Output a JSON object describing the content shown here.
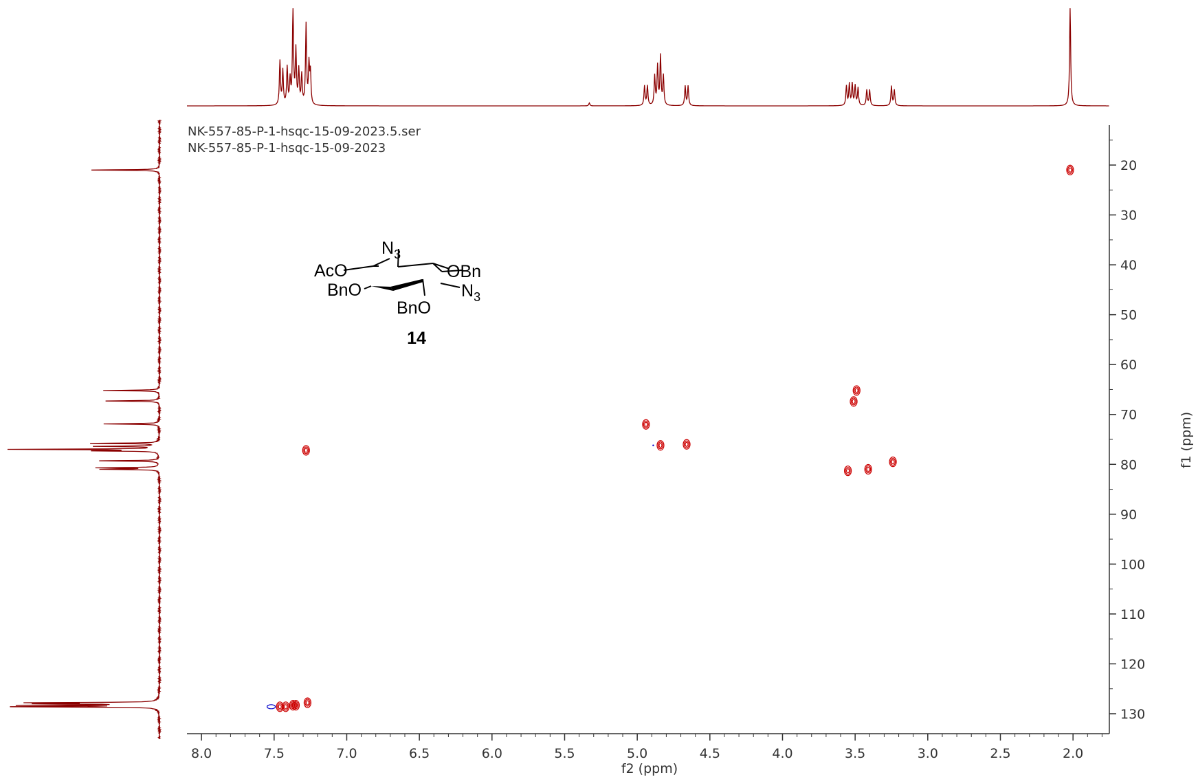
{
  "chart_data": {
    "type": "scatter",
    "subtype": "2D HSQC NMR contour plot",
    "file_lines": [
      "NK-557-85-P-1-hsqc-15-09-2023.5.ser",
      "NK-557-85-P-1-hsqc-15-09-2023"
    ],
    "xlabel": "f2 (ppm)",
    "ylabel": "f1 (ppm)",
    "xlim": [
      8.1,
      1.75
    ],
    "ylim": [
      12,
      134
    ],
    "x_ticks": [
      "8.0",
      "7.5",
      "7.0",
      "6.5",
      "6.0",
      "5.5",
      "5.0",
      "4.5",
      "4.0",
      "3.5",
      "3.0",
      "2.5",
      "2.0"
    ],
    "y_ticks": [
      "20",
      "30",
      "40",
      "50",
      "60",
      "70",
      "80",
      "90",
      "100",
      "110",
      "120",
      "130"
    ],
    "x_tick_values": [
      8.0,
      7.5,
      7.0,
      6.5,
      6.0,
      5.5,
      5.0,
      4.5,
      4.0,
      3.5,
      3.0,
      2.5,
      2.0
    ],
    "y_tick_values": [
      20,
      30,
      40,
      50,
      60,
      70,
      80,
      90,
      100,
      110,
      120,
      130
    ],
    "colors": {
      "positive": "#cc0000",
      "negative": "#0000cc",
      "projection": "#8b0000",
      "frame": "#333333"
    },
    "grid": false,
    "cross_peaks": [
      {
        "x": 2.02,
        "y": 21.0
      },
      {
        "x": 7.28,
        "y": 77.2
      },
      {
        "x": 4.94,
        "y": 72.0
      },
      {
        "x": 4.84,
        "y": 76.2
      },
      {
        "x": 4.66,
        "y": 76.0
      },
      {
        "x": 3.49,
        "y": 65.2
      },
      {
        "x": 3.51,
        "y": 67.4
      },
      {
        "x": 3.55,
        "y": 81.3
      },
      {
        "x": 3.41,
        "y": 81.0
      },
      {
        "x": 3.24,
        "y": 79.5
      },
      {
        "x": 7.46,
        "y": 128.6
      },
      {
        "x": 7.42,
        "y": 128.6
      },
      {
        "x": 7.37,
        "y": 128.3
      },
      {
        "x": 7.35,
        "y": 128.3
      },
      {
        "x": 7.27,
        "y": 127.8
      }
    ],
    "h1_projection_peaks": [
      {
        "x": 7.46,
        "h": 0.45
      },
      {
        "x": 7.44,
        "h": 0.35
      },
      {
        "x": 7.41,
        "h": 0.38
      },
      {
        "x": 7.39,
        "h": 0.25
      },
      {
        "x": 7.37,
        "h": 1.0
      },
      {
        "x": 7.35,
        "h": 0.55
      },
      {
        "x": 7.33,
        "h": 0.35
      },
      {
        "x": 7.31,
        "h": 0.3
      },
      {
        "x": 7.28,
        "h": 0.82
      },
      {
        "x": 7.26,
        "h": 0.4
      },
      {
        "x": 7.25,
        "h": 0.32
      },
      {
        "x": 5.33,
        "h": 0.03
      },
      {
        "x": 4.95,
        "h": 0.2
      },
      {
        "x": 4.93,
        "h": 0.2
      },
      {
        "x": 4.88,
        "h": 0.3
      },
      {
        "x": 4.86,
        "h": 0.4
      },
      {
        "x": 4.84,
        "h": 0.5
      },
      {
        "x": 4.82,
        "h": 0.3
      },
      {
        "x": 4.67,
        "h": 0.2
      },
      {
        "x": 4.65,
        "h": 0.2
      },
      {
        "x": 3.56,
        "h": 0.2
      },
      {
        "x": 3.54,
        "h": 0.22
      },
      {
        "x": 3.52,
        "h": 0.22
      },
      {
        "x": 3.5,
        "h": 0.2
      },
      {
        "x": 3.48,
        "h": 0.18
      },
      {
        "x": 3.42,
        "h": 0.16
      },
      {
        "x": 3.4,
        "h": 0.16
      },
      {
        "x": 3.25,
        "h": 0.2
      },
      {
        "x": 3.23,
        "h": 0.16
      },
      {
        "x": 2.02,
        "h": 1.0
      }
    ],
    "c13_projection_peaks": [
      {
        "y": 21.0,
        "h": 0.45
      },
      {
        "y": 65.2,
        "h": 0.37
      },
      {
        "y": 67.3,
        "h": 0.36
      },
      {
        "y": 71.9,
        "h": 0.37
      },
      {
        "y": 75.8,
        "h": 0.45
      },
      {
        "y": 76.4,
        "h": 0.42
      },
      {
        "y": 77.0,
        "h": 1.0
      },
      {
        "y": 77.3,
        "h": 0.4
      },
      {
        "y": 79.3,
        "h": 0.4
      },
      {
        "y": 80.7,
        "h": 0.4
      },
      {
        "y": 81.0,
        "h": 0.38
      },
      {
        "y": 127.8,
        "h": 0.8
      },
      {
        "y": 128.0,
        "h": 0.7
      },
      {
        "y": 128.3,
        "h": 0.85
      },
      {
        "y": 128.6,
        "h": 0.93
      }
    ]
  },
  "structure": {
    "AcO": "AcO",
    "N": "N",
    "sub3": "3",
    "OBn": "OBn",
    "BnO_left": "BnO",
    "BnO_bottom": "BnO",
    "compound_number": "14"
  }
}
